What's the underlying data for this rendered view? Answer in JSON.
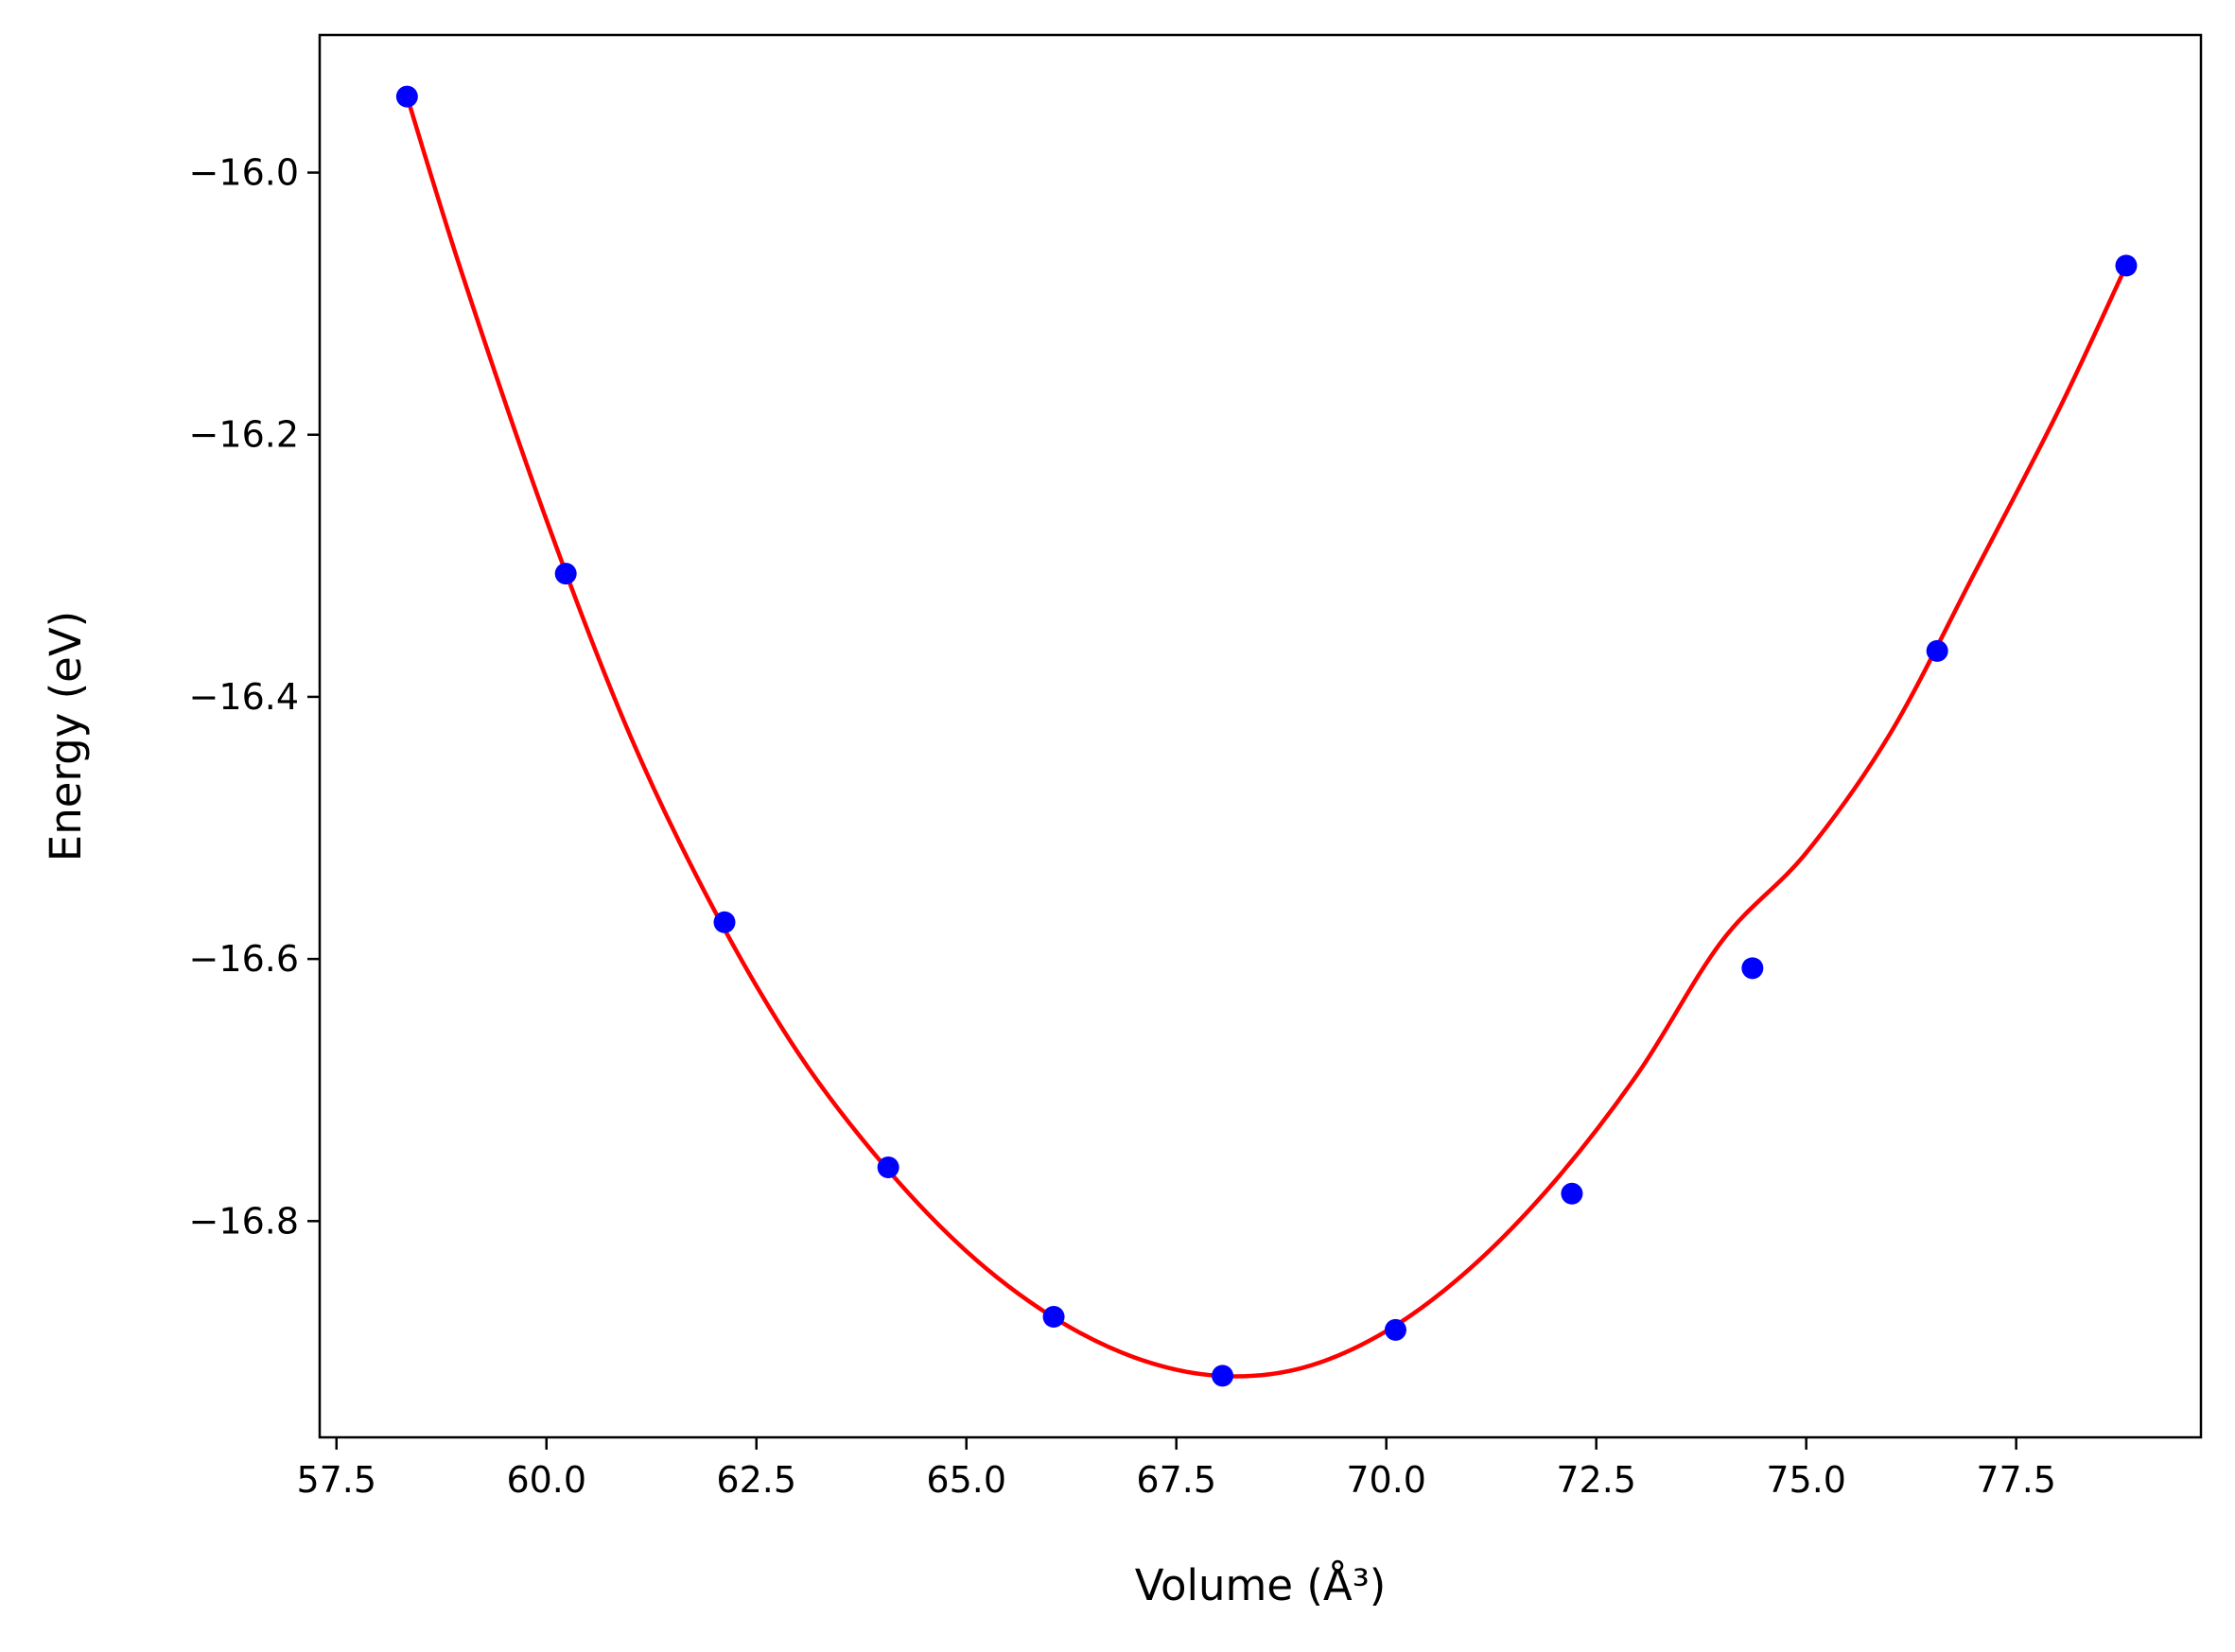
{
  "chart_data": {
    "type": "scatter",
    "title": "",
    "xlabel": "Volume (Å³)",
    "ylabel": "Energy (eV)",
    "xlim": [
      57.3,
      79.7
    ],
    "ylim": [
      -16.965,
      -15.895
    ],
    "x_ticks": [
      57.5,
      60.0,
      62.5,
      65.0,
      67.5,
      70.0,
      72.5,
      75.0,
      77.5
    ],
    "x_tick_labels": [
      "57.5",
      "60.0",
      "62.5",
      "65.0",
      "67.5",
      "70.0",
      "72.5",
      "75.0",
      "77.5"
    ],
    "y_ticks": [
      -16.0,
      -16.2,
      -16.4,
      -16.6,
      -16.8
    ],
    "y_tick_labels": [
      "−16.0",
      "−16.2",
      "−16.4",
      "−16.6",
      "−16.8"
    ],
    "grid": false,
    "legend": "none",
    "series": [
      {
        "kind": "points",
        "color": "#0000ff",
        "marker": "circle",
        "x": [
          58.34,
          60.23,
          62.12,
          64.07,
          66.04,
          68.05,
          70.11,
          72.21,
          74.36,
          76.56,
          78.81
        ],
        "y": [
          -15.942,
          -16.306,
          -16.572,
          -16.759,
          -16.873,
          -16.918,
          -16.883,
          -16.779,
          -16.607,
          -16.365,
          -16.071
        ]
      },
      {
        "kind": "fit-line",
        "color": "#ff0000",
        "x": [
          58.34,
          59.0,
          60.0,
          61.0,
          62.0,
          63.0,
          64.0,
          65.0,
          66.0,
          67.0,
          68.0,
          69.0,
          70.0,
          71.0,
          72.0,
          73.0,
          74.0,
          75.0,
          76.0,
          77.0,
          78.0,
          78.81
        ],
        "y": [
          -15.942,
          -16.078,
          -16.265,
          -16.43,
          -16.563,
          -16.672,
          -16.756,
          -16.823,
          -16.872,
          -16.904,
          -16.918,
          -16.912,
          -16.884,
          -16.836,
          -16.77,
          -16.687,
          -16.586,
          -16.519,
          -16.428,
          -16.306,
          -16.182,
          -16.071
        ]
      }
    ]
  }
}
